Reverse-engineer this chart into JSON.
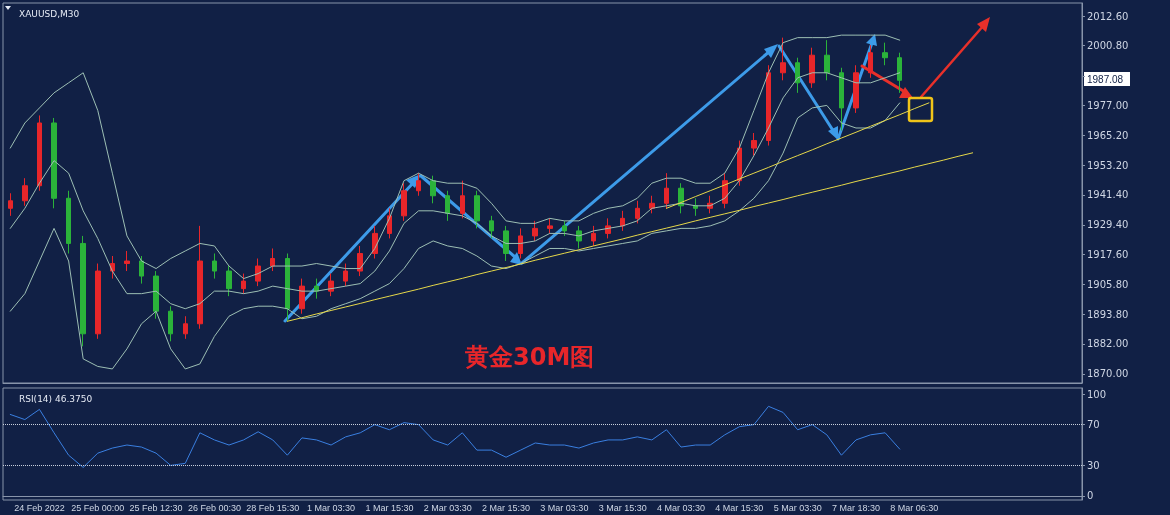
{
  "chart_data": [
    {
      "type": "candlestick",
      "title": "XAUUSD,M30",
      "tick_labels": "y",
      "marker": "none",
      "categories": [
        null,
        null,
        null,
        null,
        null,
        null,
        null,
        null,
        null,
        null,
        null,
        null,
        null,
        null,
        null,
        null,
        null,
        null,
        null,
        null,
        null,
        null,
        null,
        null,
        null,
        null,
        null,
        null,
        null,
        null,
        null,
        null,
        null,
        null,
        null,
        null,
        null,
        null,
        null,
        null,
        null,
        null,
        null,
        null,
        null,
        null,
        null,
        null,
        null,
        null,
        null,
        null,
        null,
        null,
        null,
        null,
        null,
        null,
        null,
        null,
        null,
        null,
        null,
        null,
        null,
        null,
        null,
        null,
        null,
        null,
        null,
        null,
        null,
        null
      ],
      "ohlc": [
        [
          1936,
          1942,
          1933,
          1939
        ],
        [
          1939,
          1948,
          1937,
          1945
        ],
        [
          1945,
          1973,
          1943,
          1970
        ],
        [
          1970,
          1972,
          1936,
          1940
        ],
        [
          1940,
          1943,
          1918,
          1922
        ],
        [
          1922,
          1925,
          1881,
          1886
        ],
        [
          1886,
          1914,
          1884,
          1911
        ],
        [
          1911,
          1917,
          1908,
          1914
        ],
        [
          1914,
          1919,
          1911,
          1915
        ],
        [
          1915,
          1917,
          1906,
          1909
        ],
        [
          1909,
          1911,
          1892,
          1895
        ],
        [
          1895,
          1897,
          1883,
          1886
        ],
        [
          1886,
          1893,
          1884,
          1890
        ],
        [
          1890,
          1929,
          1888,
          1915
        ],
        [
          1915,
          1918,
          1908,
          1911
        ],
        [
          1911,
          1913,
          1901,
          1904
        ],
        [
          1904,
          1910,
          1902,
          1907
        ],
        [
          1907,
          1916,
          1905,
          1913
        ],
        [
          1913,
          1920,
          1911,
          1916
        ],
        [
          1916,
          1918,
          1891,
          1896
        ],
        [
          1896,
          1908,
          1894,
          1905
        ],
        [
          1905,
          1908,
          1900,
          1903
        ],
        [
          1903,
          1910,
          1901,
          1907
        ],
        [
          1907,
          1914,
          1905,
          1911
        ],
        [
          1911,
          1921,
          1909,
          1918
        ],
        [
          1918,
          1929,
          1916,
          1926
        ],
        [
          1926,
          1936,
          1924,
          1933
        ],
        [
          1933,
          1946,
          1931,
          1943
        ],
        [
          1943,
          1950,
          1941,
          1947
        ],
        [
          1947,
          1949,
          1938,
          1941
        ],
        [
          1941,
          1943,
          1931,
          1934
        ],
        [
          1934,
          1947,
          1932,
          1941
        ],
        [
          1941,
          1943,
          1928,
          1931
        ],
        [
          1931,
          1933,
          1924,
          1927
        ],
        [
          1927,
          1929,
          1915,
          1918
        ],
        [
          1918,
          1928,
          1916,
          1925
        ],
        [
          1925,
          1931,
          1923,
          1928
        ],
        [
          1928,
          1932,
          1926,
          1929
        ],
        [
          1929,
          1931,
          1925,
          1927
        ],
        [
          1927,
          1929,
          1920,
          1923
        ],
        [
          1923,
          1929,
          1921,
          1926
        ],
        [
          1926,
          1932,
          1924,
          1929
        ],
        [
          1929,
          1935,
          1927,
          1932
        ],
        [
          1932,
          1939,
          1930,
          1936
        ],
        [
          1936,
          1941,
          1934,
          1938
        ],
        [
          1938,
          1950,
          1936,
          1944
        ],
        [
          1944,
          1946,
          1934,
          1937
        ],
        [
          1937,
          1940,
          1933,
          1936
        ],
        [
          1936,
          1941,
          1934,
          1938
        ],
        [
          1938,
          1950,
          1936,
          1947
        ],
        [
          1947,
          1963,
          1945,
          1960
        ],
        [
          1960,
          1966,
          1957,
          1963
        ],
        [
          1963,
          1993,
          1961,
          1990
        ],
        [
          1990,
          2004,
          1987,
          1994
        ],
        [
          1994,
          1996,
          1982,
          1986
        ],
        [
          1986,
          2000,
          1984,
          1997
        ],
        [
          1997,
          2003,
          1987,
          1990
        ],
        [
          1990,
          1992,
          1967,
          1976
        ],
        [
          1976,
          1993,
          1974,
          1990
        ],
        [
          1990,
          2001,
          1988,
          1998
        ],
        [
          1998,
          2002,
          1993,
          1996
        ],
        [
          1996,
          1998,
          1982,
          1987
        ],
        null,
        null,
        null,
        null,
        null,
        null,
        null,
        null,
        null,
        null,
        null,
        null
      ],
      "colors": [
        "#e8262a",
        "#e8262a",
        "#e8262a",
        "#2bb33a",
        "#2bb33a",
        "#2bb33a",
        "#e8262a",
        "#e8262a",
        "#e8262a",
        "#2bb33a",
        "#2bb33a",
        "#2bb33a",
        "#e8262a",
        "#e8262a",
        "#2bb33a",
        "#2bb33a",
        "#e8262a",
        "#e8262a",
        "#e8262a",
        "#2bb33a",
        "#e8262a",
        "#2bb33a",
        "#e8262a",
        "#e8262a",
        "#e8262a",
        "#e8262a",
        "#e8262a",
        "#e8262a",
        "#e8262a",
        "#2bb33a",
        "#2bb33a",
        "#e8262a",
        "#2bb33a",
        "#2bb33a",
        "#2bb33a",
        "#e8262a",
        "#e8262a",
        "#e8262a",
        "#2bb33a",
        "#2bb33a",
        "#e8262a",
        "#e8262a",
        "#e8262a",
        "#e8262a",
        "#e8262a",
        "#e8262a",
        "#2bb33a",
        "#2bb33a",
        "#e8262a",
        "#e8262a",
        "#e8262a",
        "#e8262a",
        "#e8262a",
        "#e8262a",
        "#2bb33a",
        "#e8262a",
        "#2bb33a",
        "#2bb33a",
        "#e8262a",
        "#e8262a",
        "#2bb33a",
        "#2bb33a",
        null,
        null,
        null,
        null,
        null,
        null,
        null,
        null,
        null,
        null,
        null,
        null
      ],
      "series": [
        {
          "type": "line",
          "color": "#9dbfb4",
          "values": [
            1960,
            1970,
            1976,
            1982,
            1986,
            1990,
            1975,
            1950,
            1925,
            1915,
            1912,
            1916,
            1919,
            1922,
            1921,
            1913,
            1908,
            1910,
            1913,
            1913,
            1913,
            1914,
            1913,
            1912,
            1912,
            1920,
            1932,
            1947,
            1950,
            1947,
            1946,
            1946,
            1944,
            1938,
            1931,
            1930,
            1930,
            1932,
            1931,
            1931,
            1934,
            1936,
            1937,
            1940,
            1946,
            1948,
            1948,
            1946,
            1946,
            1950,
            1960,
            1975,
            1990,
            2002,
            2004,
            2004,
            2004,
            2005,
            2005,
            2005,
            2005,
            2003,
            null,
            null,
            null,
            null,
            null,
            null,
            null,
            null,
            null,
            null,
            null,
            null
          ]
        },
        {
          "type": "line",
          "color": "#9dbfb4",
          "values": [
            1928,
            1936,
            1946,
            1955,
            1950,
            1935,
            1924,
            1911,
            1902,
            1902,
            1903,
            1898,
            1896,
            1898,
            1903,
            1903,
            1902,
            1903,
            1905,
            1904,
            1903,
            1903,
            1904,
            1905,
            1906,
            1911,
            1919,
            1930,
            1935,
            1935,
            1934,
            1933,
            1930,
            1925,
            1922,
            1922,
            1923,
            1926,
            1926,
            1925,
            1927,
            1928,
            1929,
            1931,
            1936,
            1937,
            1938,
            1937,
            1937,
            1940,
            1947,
            1957,
            1968,
            1980,
            1988,
            1990,
            1990,
            1988,
            1986,
            1986,
            1988,
            1990,
            null,
            null,
            null,
            null,
            null,
            null,
            null,
            null,
            null,
            null,
            null,
            null
          ]
        },
        {
          "type": "line",
          "color": "#9dbfb4",
          "values": [
            1895,
            1902,
            1915,
            1928,
            1915,
            1876,
            1873,
            1872,
            1880,
            1890,
            1895,
            1880,
            1872,
            1874,
            1885,
            1893,
            1896,
            1897,
            1897,
            1896,
            1892,
            1893,
            1896,
            1898,
            1900,
            1903,
            1906,
            1912,
            1920,
            1923,
            1921,
            1920,
            1917,
            1913,
            1912,
            1914,
            1917,
            1920,
            1920,
            1919,
            1920,
            1921,
            1922,
            1923,
            1926,
            1927,
            1928,
            1928,
            1929,
            1931,
            1935,
            1940,
            1947,
            1958,
            1972,
            1976,
            1977,
            1970,
            1968,
            1968,
            1971,
            1978,
            null,
            null,
            null,
            null,
            null,
            null,
            null,
            null,
            null,
            null,
            null,
            null
          ]
        },
        {
          "type": "line",
          "color": "#e6d84a",
          "values": [
            null,
            null,
            null,
            null,
            null,
            null,
            null,
            null,
            null,
            null,
            null,
            null,
            null,
            null,
            null,
            null,
            null,
            null,
            null,
            1891,
            1892.4,
            1893.9,
            1895.3,
            1896.7,
            1898.1,
            1899.6,
            1901.0,
            1902.4,
            1903.8,
            1905.3,
            1906.7,
            1908.1,
            1909.6,
            1911.0,
            1912.4,
            1913.8,
            1915.3,
            1916.7,
            1918.1,
            1919.5,
            1921.0,
            1922.4,
            1923.8,
            1925.3,
            1926.7,
            1928.1,
            1929.5,
            1931.0,
            1932.4,
            1933.8,
            1935.2,
            1936.7,
            1938.1,
            1939.5,
            1941.0,
            1942.4,
            1943.8,
            1945.2,
            1946.7,
            1948.1,
            1949.5,
            1950.9,
            1952.4,
            1953.8,
            1955.2,
            1956.7,
            1958.1,
            null,
            null,
            null,
            null,
            null,
            null,
            null
          ]
        },
        {
          "type": "line",
          "color": "#e6d84a",
          "values": [
            null,
            null,
            null,
            null,
            null,
            null,
            null,
            null,
            null,
            null,
            null,
            null,
            null,
            null,
            null,
            null,
            null,
            null,
            null,
            null,
            null,
            null,
            null,
            null,
            null,
            null,
            null,
            null,
            null,
            null,
            null,
            null,
            null,
            null,
            null,
            null,
            null,
            null,
            null,
            null,
            null,
            null,
            null,
            null,
            null,
            1936,
            1938.3,
            1940.7,
            1943,
            1945.3,
            1947.7,
            1950,
            1952.3,
            1954.7,
            1957,
            1959.3,
            1961.7,
            1964,
            1966.3,
            1968.7,
            1971,
            1973.3,
            1975.7,
            1978,
            null,
            null,
            null,
            null,
            null,
            null,
            null,
            null,
            null,
            null
          ]
        }
      ],
      "ylim": [
        1866.4,
        2017.8
      ],
      "yticks": [
        {
          "value": 1870,
          "label": "1870.00"
        },
        {
          "value": 1882,
          "label": "1882.00"
        },
        {
          "value": 1893.8,
          "label": "1893.80"
        },
        {
          "value": 1905.8,
          "label": "1905.80"
        },
        {
          "value": 1917.6,
          "label": "1917.60"
        },
        {
          "value": 1929.4,
          "label": "1929.40"
        },
        {
          "value": 1941.4,
          "label": "1941.40"
        },
        {
          "value": 1953.2,
          "label": "1953.20"
        },
        {
          "value": 1965.2,
          "label": "1965.20"
        },
        {
          "value": 1977,
          "label": "1977.00"
        },
        {
          "value": 1988.8,
          "label": null
        },
        {
          "value": 2000.8,
          "label": "2000.80"
        },
        {
          "value": 2012.6,
          "label": "2012.60"
        }
      ],
      "annotations": [
        "黄金30M图",
        "1987.08"
      ]
    },
    {
      "type": "line",
      "title": "RSI(14) 46.3750",
      "marker": "none",
      "color": "#3a7fe0",
      "categories": [
        null,
        null,
        "24 Feb 2022",
        null,
        null,
        null,
        "25 Feb 00:00",
        null,
        null,
        null,
        "25 Feb 12:30",
        null,
        null,
        null,
        "26 Feb 00:30",
        null,
        null,
        null,
        "28 Feb 15:30",
        null,
        null,
        null,
        "1 Mar 03:30",
        null,
        null,
        null,
        "1 Mar 15:30",
        null,
        null,
        null,
        "2 Mar 03:30",
        null,
        null,
        null,
        "2 Mar 15:30",
        null,
        null,
        null,
        "3 Mar 03:30",
        null,
        null,
        null,
        "3 Mar 15:30",
        null,
        null,
        null,
        "4 Mar 03:30",
        null,
        null,
        null,
        "4 Mar 15:30",
        null,
        null,
        null,
        "5 Mar 03:30",
        null,
        null,
        null,
        "7 Mar 18:30",
        null,
        null,
        null,
        "8 Mar 06:30",
        null,
        null,
        null,
        null,
        null,
        null,
        null,
        null,
        null,
        null,
        null
      ],
      "values": [
        80,
        75,
        85,
        62,
        40,
        28,
        42,
        47,
        50,
        48,
        42,
        30,
        32,
        62,
        55,
        50,
        55,
        63,
        55,
        40,
        57,
        55,
        50,
        58,
        62,
        70,
        65,
        72,
        70,
        55,
        50,
        62,
        45,
        45,
        38,
        45,
        52,
        50,
        50,
        47,
        52,
        55,
        55,
        58,
        55,
        65,
        48,
        50,
        50,
        60,
        68,
        70,
        88,
        82,
        65,
        70,
        60,
        40,
        55,
        60,
        62,
        46,
        null,
        null,
        null,
        null,
        null,
        null,
        null,
        null,
        null,
        null,
        null,
        null
      ],
      "ylim": [
        -4,
        106
      ],
      "yticks": [
        0,
        30,
        70,
        100
      ],
      "ref_lines": [
        {
          "axis": "y",
          "value": 30,
          "color": "#c8cfdc",
          "line_style": "dotted"
        },
        {
          "axis": "y",
          "value": 70,
          "color": "#c8cfdc",
          "line_style": "dotted"
        }
      ]
    }
  ]
}
